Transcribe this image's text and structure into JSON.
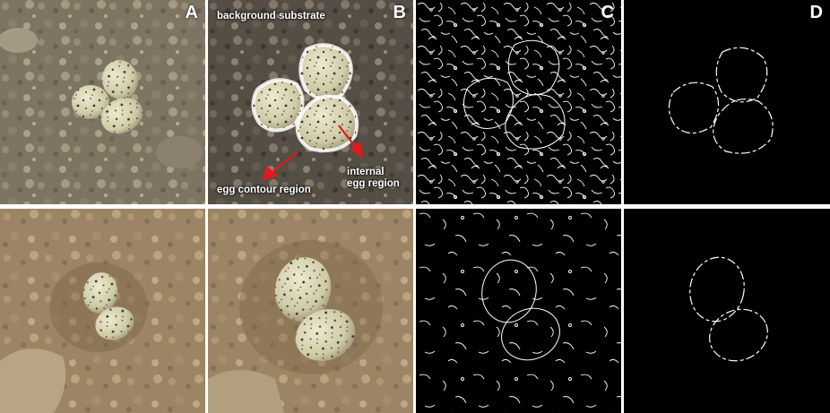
{
  "panels": {
    "a": {
      "label": "A"
    },
    "b": {
      "label": "B"
    },
    "c": {
      "label": "C"
    },
    "d": {
      "label": "D"
    }
  },
  "annotations": {
    "background": "background substrate",
    "contour": "egg contour region",
    "internal_line1": "internal",
    "internal_line2": "egg region"
  },
  "colors": {
    "arrow": "#e01b1b",
    "contour_outline": "#ffffff",
    "edge_background": "#000000",
    "edge_lines": "#ffffff"
  }
}
